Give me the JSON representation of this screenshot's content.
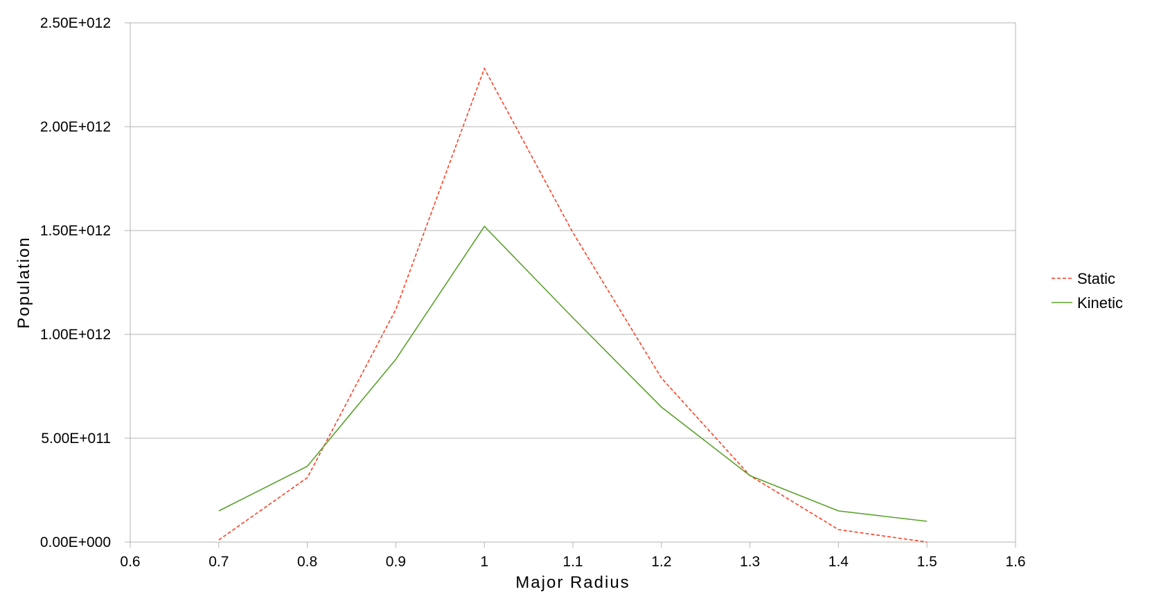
{
  "chart_data": {
    "type": "line",
    "title": "",
    "xlabel": "Major Radius",
    "ylabel": "Population",
    "xlim": [
      0.6,
      1.6
    ],
    "ylim": [
      0,
      2500000000000
    ],
    "x_ticks": [
      0.6,
      0.7,
      0.8,
      0.9,
      1.0,
      1.1,
      1.2,
      1.3,
      1.4,
      1.5,
      1.6
    ],
    "x_tick_labels": [
      "0.6",
      "0.7",
      "0.8",
      "0.9",
      "1",
      "1.1",
      "1.2",
      "1.3",
      "1.4",
      "1.5",
      "1.6"
    ],
    "y_ticks": [
      0,
      500000000000,
      1000000000000,
      1500000000000,
      2000000000000,
      2500000000000
    ],
    "y_tick_labels": [
      "0.00E+000",
      "5.00E+011",
      "1.00E+012",
      "1.50E+012",
      "2.00E+012",
      "2.50E+012"
    ],
    "grid": "horizontal",
    "legend_position": "right",
    "x": [
      0.7,
      0.8,
      0.9,
      1.0,
      1.1,
      1.2,
      1.3,
      1.4,
      1.5
    ],
    "series": [
      {
        "name": "Static",
        "color": "#ff3b1f",
        "style": "dashed",
        "values": [
          10000000000,
          310000000000,
          1120000000000,
          2280000000000,
          1490000000000,
          790000000000,
          320000000000,
          60000000000,
          0
        ]
      },
      {
        "name": "Kinetic",
        "color": "#5aa02c",
        "style": "solid",
        "values": [
          150000000000,
          365000000000,
          880000000000,
          1520000000000,
          1080000000000,
          650000000000,
          320000000000,
          150000000000,
          100000000000
        ]
      }
    ]
  }
}
